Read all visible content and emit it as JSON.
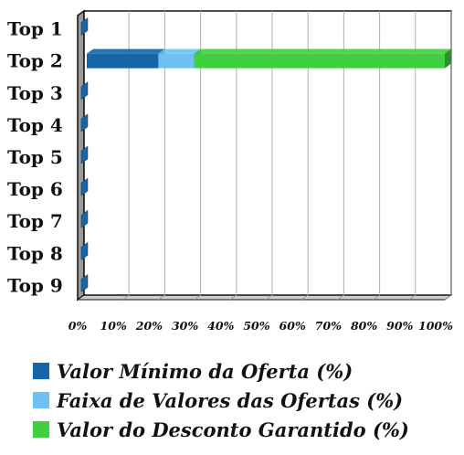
{
  "chart_data": {
    "type": "bar",
    "orientation": "horizontal",
    "stacked": true,
    "normalized_percent": true,
    "categories": [
      "Top 1",
      "Top 2",
      "Top 3",
      "Top 4",
      "Top 5",
      "Top 6",
      "Top 7",
      "Top 8",
      "Top 9"
    ],
    "series": [
      {
        "name": "Valor Mínimo da Oferta (%)",
        "color": "#1565a8",
        "values": [
          0,
          20,
          0,
          0,
          0,
          0,
          0,
          0,
          0
        ]
      },
      {
        "name": "Faixa de Valores das Ofertas (%)",
        "color": "#6ec1f2",
        "values": [
          0,
          10,
          0,
          0,
          0,
          0,
          0,
          0,
          0
        ]
      },
      {
        "name": "Valor do Desconto Garantido (%)",
        "color": "#3fcf3f",
        "values": [
          0,
          70,
          0,
          0,
          0,
          0,
          0,
          0,
          0
        ]
      }
    ],
    "x_ticks": [
      "0%",
      "10%",
      "20%",
      "30%",
      "40%",
      "50%",
      "60%",
      "70%",
      "80%",
      "90%",
      "100%"
    ],
    "xlim": [
      0,
      100
    ],
    "grid": true,
    "legend_position": "bottom"
  }
}
